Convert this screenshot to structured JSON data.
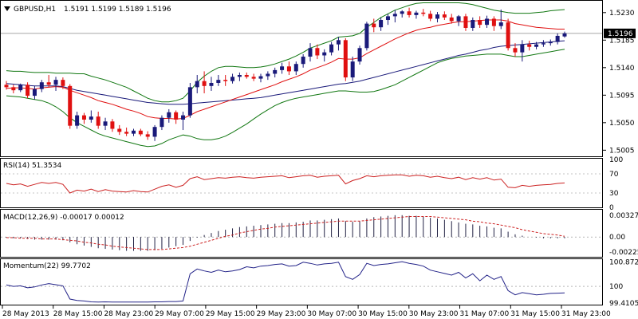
{
  "header": {
    "symbol": "GBPUSD,H1",
    "ohlc": "1.5191 1.5199 1.5189 1.5196",
    "arrow": "down-triangle-icon"
  },
  "colors": {
    "bull": "#1a1a7a",
    "bear": "#e01010",
    "ma_fast": "#e01010",
    "ma_slow": "#1a1a7a",
    "bands": "#117711",
    "rsi": "#cc2222",
    "macd_hist": "#222244",
    "macd_signal": "#cc2222",
    "momentum": "#222288",
    "grid": "#888888"
  },
  "chart_data": [
    {
      "type": "candlestick",
      "title": "GBPUSD,H1",
      "ohlc_text": "1.5191 1.5199 1.5189 1.5196",
      "ylim": [
        1.4995,
        1.5248
      ],
      "yticks": [
        "1.5230",
        "1.5185",
        "1.5140",
        "1.5095",
        "1.5050",
        "1.5005"
      ],
      "ytick_values": [
        1.523,
        1.5185,
        1.514,
        1.5095,
        1.505,
        1.5005
      ],
      "current_price": "1.5196",
      "current_value": 1.5196,
      "xticks": [
        "28 May 2013",
        "28 May 15:00",
        "28 May 23:00",
        "29 May 07:00",
        "29 May 15:00",
        "29 May 23:00",
        "30 May 07:00",
        "30 May 15:00",
        "30 May 23:00",
        "31 May 07:00",
        "31 May 15:00",
        "31 May 23:00"
      ],
      "candles": [
        [
          1.5112,
          1.5118,
          1.5104,
          1.5108
        ],
        [
          1.5108,
          1.5112,
          1.5098,
          1.5103
        ],
        [
          1.5103,
          1.5114,
          1.51,
          1.5112
        ],
        [
          1.5112,
          1.5116,
          1.509,
          1.5094
        ],
        [
          1.5094,
          1.511,
          1.5088,
          1.5105
        ],
        [
          1.5105,
          1.512,
          1.51,
          1.5116
        ],
        [
          1.5116,
          1.5128,
          1.5108,
          1.5112
        ],
        [
          1.5112,
          1.5125,
          1.5102,
          1.512
        ],
        [
          1.512,
          1.5124,
          1.5105,
          1.511
        ],
        [
          1.511,
          1.5113,
          1.504,
          1.5045
        ],
        [
          1.5045,
          1.5068,
          1.504,
          1.5062
        ],
        [
          1.5062,
          1.5066,
          1.5048,
          1.5055
        ],
        [
          1.5055,
          1.507,
          1.505,
          1.506
        ],
        [
          1.506,
          1.5068,
          1.504,
          1.5045
        ],
        [
          1.5045,
          1.5058,
          1.5038,
          1.5052
        ],
        [
          1.5052,
          1.5056,
          1.5035,
          1.504
        ],
        [
          1.504,
          1.5046,
          1.503,
          1.5035
        ],
        [
          1.5035,
          1.5042,
          1.5028,
          1.5032
        ],
        [
          1.5032,
          1.504,
          1.5028,
          1.5037
        ],
        [
          1.5037,
          1.504,
          1.5028,
          1.5031
        ],
        [
          1.5031,
          1.5036,
          1.5022,
          1.5027
        ],
        [
          1.5027,
          1.5046,
          1.502,
          1.5043
        ],
        [
          1.5043,
          1.5062,
          1.5038,
          1.5058
        ],
        [
          1.5058,
          1.5072,
          1.505,
          1.5067
        ],
        [
          1.5067,
          1.507,
          1.5048,
          1.5055
        ],
        [
          1.5055,
          1.5068,
          1.5038,
          1.5062
        ],
        [
          1.5062,
          1.5115,
          1.5058,
          1.5108
        ],
        [
          1.5108,
          1.5128,
          1.5098,
          1.5118
        ],
        [
          1.5118,
          1.5134,
          1.5098,
          1.511
        ],
        [
          1.511,
          1.5125,
          1.5102,
          1.5115
        ],
        [
          1.5115,
          1.5128,
          1.511,
          1.512
        ],
        [
          1.512,
          1.5128,
          1.511,
          1.5118
        ],
        [
          1.5118,
          1.513,
          1.5114,
          1.5125
        ],
        [
          1.5125,
          1.5132,
          1.5118,
          1.5128
        ],
        [
          1.5128,
          1.5132,
          1.5122,
          1.5125
        ],
        [
          1.5125,
          1.513,
          1.5118,
          1.5122
        ],
        [
          1.5122,
          1.513,
          1.5116,
          1.5126
        ],
        [
          1.5126,
          1.5134,
          1.512,
          1.513
        ],
        [
          1.513,
          1.514,
          1.5124,
          1.5136
        ],
        [
          1.5136,
          1.5148,
          1.513,
          1.5142
        ],
        [
          1.5142,
          1.515,
          1.5128,
          1.5134
        ],
        [
          1.5134,
          1.515,
          1.5128,
          1.5146
        ],
        [
          1.5146,
          1.5162,
          1.514,
          1.5158
        ],
        [
          1.5158,
          1.518,
          1.515,
          1.5172
        ],
        [
          1.5172,
          1.5178,
          1.5154,
          1.516
        ],
        [
          1.516,
          1.517,
          1.515,
          1.5165
        ],
        [
          1.5165,
          1.5182,
          1.516,
          1.5178
        ],
        [
          1.5178,
          1.519,
          1.5168,
          1.5185
        ],
        [
          1.5185,
          1.5188,
          1.5118,
          1.5124
        ],
        [
          1.5124,
          1.5158,
          1.5118,
          1.515
        ],
        [
          1.515,
          1.5176,
          1.5145,
          1.5172
        ],
        [
          1.5172,
          1.5215,
          1.5168,
          1.5212
        ],
        [
          1.5212,
          1.522,
          1.5198,
          1.5206
        ],
        [
          1.5206,
          1.5222,
          1.52,
          1.5218
        ],
        [
          1.5218,
          1.5228,
          1.521,
          1.5224
        ],
        [
          1.5224,
          1.5234,
          1.5214,
          1.5228
        ],
        [
          1.5228,
          1.5234,
          1.5222,
          1.5232
        ],
        [
          1.5232,
          1.5238,
          1.5222,
          1.5226
        ],
        [
          1.5226,
          1.5233,
          1.522,
          1.523
        ],
        [
          1.523,
          1.5236,
          1.5224,
          1.5228
        ],
        [
          1.5228,
          1.5233,
          1.5216,
          1.522
        ],
        [
          1.522,
          1.5231,
          1.5214,
          1.5227
        ],
        [
          1.5227,
          1.5232,
          1.5218,
          1.5222
        ],
        [
          1.5222,
          1.5228,
          1.5212,
          1.5216
        ],
        [
          1.5216,
          1.5226,
          1.5208,
          1.5224
        ],
        [
          1.5224,
          1.5228,
          1.52,
          1.5205
        ],
        [
          1.5205,
          1.5222,
          1.52,
          1.5218
        ],
        [
          1.5218,
          1.5224,
          1.5205,
          1.521
        ],
        [
          1.521,
          1.5225,
          1.5205,
          1.522
        ],
        [
          1.522,
          1.5224,
          1.52,
          1.5208
        ],
        [
          1.5208,
          1.5235,
          1.5203,
          1.5214
        ],
        [
          1.5214,
          1.522,
          1.5168,
          1.5172
        ],
        [
          1.5172,
          1.518,
          1.5158,
          1.5165
        ],
        [
          1.5165,
          1.5185,
          1.515,
          1.5178
        ],
        [
          1.5178,
          1.5184,
          1.5168,
          1.5174
        ],
        [
          1.5174,
          1.5182,
          1.517,
          1.5178
        ],
        [
          1.5178,
          1.5185,
          1.5174,
          1.518
        ],
        [
          1.518,
          1.5186,
          1.5176,
          1.5182
        ],
        [
          1.5182,
          1.5196,
          1.5178,
          1.5192
        ],
        [
          1.5191,
          1.5199,
          1.5189,
          1.5196
        ]
      ],
      "ma_fast": [
        1.5106,
        1.5107,
        1.5107,
        1.5106,
        1.5105,
        1.5107,
        1.5108,
        1.5109,
        1.5108,
        1.5103,
        1.5099,
        1.5095,
        1.5091,
        1.5086,
        1.5083,
        1.508,
        1.5076,
        1.5072,
        1.5069,
        1.5065,
        1.506,
        1.5058,
        1.5057,
        1.5057,
        1.5056,
        1.5057,
        1.5062,
        1.5068,
        1.5072,
        1.5076,
        1.508,
        1.5084,
        1.5088,
        1.5092,
        1.5096,
        1.51,
        1.5104,
        1.5108,
        1.5112,
        1.5117,
        1.5121,
        1.5125,
        1.513,
        1.5136,
        1.514,
        1.5144,
        1.5149,
        1.5155,
        1.5154,
        1.5154,
        1.5156,
        1.5163,
        1.5169,
        1.5175,
        1.5181,
        1.5187,
        1.5192,
        1.5197,
        1.5201,
        1.5204,
        1.5206,
        1.5209,
        1.5211,
        1.5213,
        1.5215,
        1.5215,
        1.5216,
        1.5217,
        1.5218,
        1.5218,
        1.5218,
        1.5216,
        1.5212,
        1.521,
        1.5208,
        1.5206,
        1.5205,
        1.5204,
        1.5203,
        1.5203
      ],
      "ma_slow": [
        1.5114,
        1.5113,
        1.5112,
        1.5111,
        1.511,
        1.511,
        1.511,
        1.511,
        1.5109,
        1.5106,
        1.5103,
        1.5101,
        1.5099,
        1.5097,
        1.5095,
        1.5093,
        1.5091,
        1.5089,
        1.5087,
        1.5085,
        1.5083,
        1.5082,
        1.5081,
        1.508,
        1.508,
        1.508,
        1.5081,
        1.5082,
        1.5083,
        1.5084,
        1.5085,
        1.5086,
        1.5087,
        1.5088,
        1.5089,
        1.509,
        1.5091,
        1.5093,
        1.5095,
        1.5097,
        1.5099,
        1.5101,
        1.5103,
        1.5105,
        1.5107,
        1.5109,
        1.5111,
        1.5113,
        1.5114,
        1.5116,
        1.5118,
        1.5121,
        1.5124,
        1.5127,
        1.513,
        1.5133,
        1.5136,
        1.5139,
        1.5142,
        1.5145,
        1.5148,
        1.5151,
        1.5154,
        1.5157,
        1.516,
        1.5162,
        1.5165,
        1.5168,
        1.517,
        1.5173,
        1.5175,
        1.5176,
        1.5177,
        1.5178,
        1.5179,
        1.518,
        1.5181,
        1.5182,
        1.5183,
        1.5184
      ],
      "band_upper": [
        1.5135,
        1.5134,
        1.5134,
        1.5133,
        1.5132,
        1.5132,
        1.5132,
        1.5131,
        1.5131,
        1.5131,
        1.513,
        1.513,
        1.5126,
        1.5123,
        1.512,
        1.5116,
        1.5112,
        1.5108,
        1.5102,
        1.5096,
        1.509,
        1.5086,
        1.5084,
        1.5084,
        1.5086,
        1.509,
        1.5102,
        1.5116,
        1.5126,
        1.5134,
        1.514,
        1.5142,
        1.5142,
        1.5141,
        1.514,
        1.514,
        1.5141,
        1.5143,
        1.5146,
        1.515,
        1.5154,
        1.5159,
        1.5165,
        1.5172,
        1.5176,
        1.518,
        1.5184,
        1.519,
        1.5191,
        1.5192,
        1.5196,
        1.5206,
        1.5214,
        1.5222,
        1.5228,
        1.5234,
        1.5238,
        1.5242,
        1.5245,
        1.5246,
        1.5246,
        1.5246,
        1.5246,
        1.5246,
        1.5246,
        1.5245,
        1.5243,
        1.524,
        1.5237,
        1.5234,
        1.5232,
        1.523,
        1.5229,
        1.5229,
        1.5229,
        1.523,
        1.5231,
        1.5233,
        1.5234,
        1.5235
      ],
      "band_lower": [
        1.5094,
        1.5093,
        1.5092,
        1.509,
        1.5088,
        1.5086,
        1.5082,
        1.5076,
        1.5068,
        1.5058,
        1.505,
        1.5044,
        1.5038,
        1.5032,
        1.5028,
        1.5025,
        1.5022,
        1.5019,
        1.5016,
        1.5013,
        1.5011,
        1.5012,
        1.5016,
        1.5022,
        1.5026,
        1.503,
        1.5028,
        1.5024,
        1.5022,
        1.5022,
        1.5024,
        1.5028,
        1.5034,
        1.5041,
        1.5048,
        1.5056,
        1.5064,
        1.5071,
        1.5078,
        1.5083,
        1.5087,
        1.509,
        1.5092,
        1.5094,
        1.5096,
        1.5098,
        1.51,
        1.5102,
        1.5102,
        1.5101,
        1.51,
        1.51,
        1.5101,
        1.5104,
        1.5108,
        1.5112,
        1.5118,
        1.5124,
        1.513,
        1.5136,
        1.5142,
        1.5148,
        1.5152,
        1.5155,
        1.5157,
        1.5159,
        1.516,
        1.5161,
        1.5162,
        1.5162,
        1.5162,
        1.516,
        1.5158,
        1.5158,
        1.516,
        1.5162,
        1.5164,
        1.5166,
        1.5168,
        1.517
      ]
    },
    {
      "type": "line",
      "title": "RSI(14) 51.3534",
      "ylim": [
        0,
        100
      ],
      "yticks": [
        "100",
        "70",
        "30",
        "0"
      ],
      "ytick_values": [
        100,
        70,
        30,
        0
      ],
      "levels": [
        70,
        30
      ],
      "values": [
        50,
        47,
        49,
        44,
        48,
        52,
        50,
        52,
        48,
        30,
        36,
        34,
        38,
        33,
        37,
        34,
        33,
        32,
        35,
        33,
        32,
        38,
        44,
        47,
        42,
        46,
        60,
        64,
        58,
        60,
        62,
        61,
        63,
        64,
        62,
        61,
        63,
        64,
        65,
        66,
        62,
        64,
        66,
        67,
        63,
        65,
        66,
        67,
        49,
        56,
        60,
        66,
        64,
        66,
        67,
        68,
        68,
        65,
        67,
        66,
        63,
        65,
        62,
        60,
        63,
        58,
        62,
        59,
        62,
        57,
        59,
        42,
        41,
        46,
        44,
        46,
        47,
        48,
        50,
        51
      ]
    },
    {
      "type": "bar",
      "title": "MACD(12,26,9) -0.00017 0.00012",
      "ylim": [
        -0.003,
        0.004
      ],
      "yticks": [
        "0.00327",
        "0.00",
        "-0.00225"
      ],
      "ytick_values": [
        0.00327,
        0.0,
        -0.00225
      ],
      "hist": [
        -0.0001,
        -0.0002,
        -0.0002,
        -0.0003,
        -0.0004,
        -0.0004,
        -0.0004,
        -0.0004,
        -0.0005,
        -0.0008,
        -0.0011,
        -0.0013,
        -0.0015,
        -0.0017,
        -0.0018,
        -0.0019,
        -0.002,
        -0.0021,
        -0.0021,
        -0.0021,
        -0.0021,
        -0.002,
        -0.0018,
        -0.0016,
        -0.0014,
        -0.0012,
        -0.0006,
        -0.0001,
        0.0003,
        0.0006,
        0.0009,
        0.0011,
        0.0013,
        0.0015,
        0.0016,
        0.0017,
        0.0018,
        0.0019,
        0.002,
        0.0021,
        0.0021,
        0.0022,
        0.0023,
        0.0025,
        0.0025,
        0.0026,
        0.0027,
        0.0028,
        0.0024,
        0.0023,
        0.0024,
        0.0028,
        0.003,
        0.0031,
        0.0032,
        0.0033,
        0.0033,
        0.0032,
        0.0032,
        0.0031,
        0.0029,
        0.0028,
        0.0026,
        0.0024,
        0.0022,
        0.002,
        0.0019,
        0.0017,
        0.0016,
        0.0014,
        0.0013,
        0.0008,
        0.0004,
        0.0002,
        0.0,
        -0.0001,
        -0.0002,
        -0.0002,
        -0.0002,
        -0.0002
      ],
      "signal": [
        -0.0001,
        -0.0001,
        -0.0002,
        -0.0002,
        -0.0002,
        -0.0003,
        -0.0003,
        -0.0003,
        -0.0004,
        -0.0005,
        -0.0006,
        -0.0008,
        -0.0009,
        -0.0011,
        -0.0012,
        -0.0014,
        -0.0015,
        -0.0016,
        -0.0017,
        -0.0018,
        -0.0019,
        -0.0019,
        -0.0019,
        -0.0018,
        -0.0017,
        -0.0016,
        -0.0014,
        -0.0011,
        -0.0008,
        -0.0005,
        -0.0002,
        0.0001,
        0.0003,
        0.0006,
        0.0008,
        0.001,
        0.0012,
        0.0013,
        0.0015,
        0.0016,
        0.0017,
        0.0018,
        0.0019,
        0.002,
        0.0021,
        0.0022,
        0.0023,
        0.0024,
        0.0024,
        0.0024,
        0.0024,
        0.0025,
        0.0026,
        0.0027,
        0.0028,
        0.0029,
        0.003,
        0.0031,
        0.0031,
        0.0031,
        0.0031,
        0.003,
        0.0029,
        0.0028,
        0.0027,
        0.0026,
        0.0024,
        0.0023,
        0.0021,
        0.002,
        0.0018,
        0.0016,
        0.0014,
        0.0011,
        0.0009,
        0.0007,
        0.0005,
        0.0004,
        0.0003,
        0.0001
      ]
    },
    {
      "type": "line",
      "title": "Momentum(22) 99.7702",
      "ylim": [
        99.35,
        100.94
      ],
      "yticks": [
        "100.8722",
        "100",
        "99.4105"
      ],
      "ytick_values": [
        100.8722,
        100,
        99.4105
      ],
      "level": 100,
      "values": [
        100.05,
        100.0,
        100.02,
        99.95,
        99.98,
        100.05,
        100.1,
        100.06,
        100.02,
        99.55,
        99.5,
        99.48,
        99.45,
        99.44,
        99.45,
        99.44,
        99.44,
        99.44,
        99.44,
        99.44,
        99.44,
        99.45,
        99.45,
        99.46,
        99.46,
        99.48,
        100.45,
        100.62,
        100.55,
        100.5,
        100.58,
        100.52,
        100.55,
        100.6,
        100.7,
        100.66,
        100.72,
        100.74,
        100.78,
        100.8,
        100.72,
        100.74,
        100.86,
        100.82,
        100.76,
        100.8,
        100.82,
        100.86,
        100.35,
        100.25,
        100.42,
        100.82,
        100.74,
        100.78,
        100.8,
        100.84,
        100.88,
        100.82,
        100.78,
        100.72,
        100.58,
        100.52,
        100.46,
        100.4,
        100.5,
        100.3,
        100.45,
        100.2,
        100.4,
        100.25,
        100.35,
        99.85,
        99.7,
        99.78,
        99.74,
        99.7,
        99.72,
        99.75,
        99.76,
        99.77
      ]
    }
  ]
}
